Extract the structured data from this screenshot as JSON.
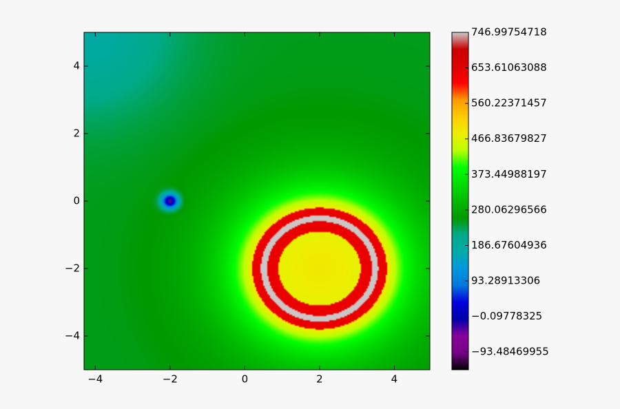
{
  "chart_data": {
    "type": "heatmap",
    "title": "",
    "xlabel": "",
    "ylabel": "",
    "xlim": [
      -4.3,
      4.95
    ],
    "ylim": [
      -5,
      5
    ],
    "x_ticks": [
      -4,
      -2,
      0,
      2,
      4
    ],
    "x_tick_labels": [
      "−4",
      "−2",
      "0",
      "2",
      "4"
    ],
    "y_ticks": [
      4,
      2,
      0,
      -2,
      -4
    ],
    "y_tick_labels": [
      "4",
      "2",
      "0",
      "−2",
      "−4"
    ],
    "colormap": "nipy_spectral",
    "colorbar": {
      "min": -140.18,
      "max": 746.99754718,
      "ticks": [
        746.99754718,
        653.61063088,
        560.22371457,
        466.83679827,
        373.44988197,
        280.06296566,
        186.67604936,
        93.28913306,
        -0.09778325,
        -93.48469955
      ],
      "tick_labels": [
        "746.99754718",
        "653.61063088",
        "560.22371457",
        "466.83679827",
        "373.44988197",
        "280.06296566",
        "186.67604936",
        "93.28913306",
        "−0.09778325",
        "−93.48469955"
      ]
    },
    "field_features": [
      {
        "kind": "sink",
        "center": [
          -2,
          0
        ],
        "min_value": -140
      },
      {
        "kind": "source",
        "center": [
          2,
          -2
        ],
        "ring_radius": 1.45,
        "ring_value": 746,
        "inner_value": 470
      }
    ],
    "colors": {
      "background": "#f7f7f7",
      "frame": "#000000"
    }
  }
}
